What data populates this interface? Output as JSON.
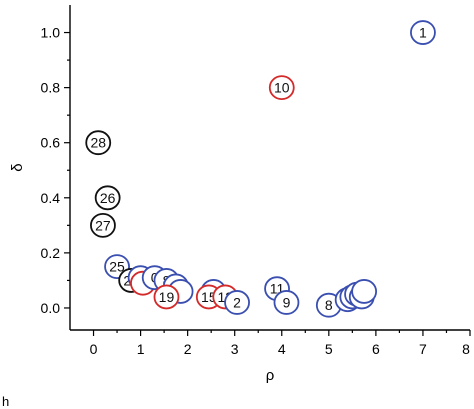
{
  "colors": {
    "blue": "#3a4fb0",
    "red": "#d42a2a",
    "black": "#111111",
    "axis": "#000000"
  },
  "chart_data": {
    "type": "scatter",
    "title": "",
    "xlabel": "ρ",
    "ylabel": "δ",
    "xlim": [
      -0.5,
      8
    ],
    "ylim": [
      -0.08,
      1.1
    ],
    "xticks": [
      0,
      1,
      2,
      3,
      4,
      5,
      6,
      7,
      8
    ],
    "yticks": [
      0.0,
      0.2,
      0.4,
      0.6,
      0.8,
      1.0
    ],
    "xtick_labels": [
      "0",
      "1",
      "2",
      "3",
      "4",
      "5",
      "6",
      "7",
      "8"
    ],
    "ytick_labels": [
      "0.0",
      "0.2",
      "0.4",
      "0.6",
      "0.8",
      "1.0"
    ],
    "grid": false,
    "legend": "none",
    "points": [
      {
        "label": "1",
        "x": 7.0,
        "y": 1.0,
        "color": "blue"
      },
      {
        "label": "10",
        "x": 4.0,
        "y": 0.8,
        "color": "red"
      },
      {
        "label": "28",
        "x": 0.1,
        "y": 0.6,
        "color": "black"
      },
      {
        "label": "26",
        "x": 0.3,
        "y": 0.4,
        "color": "black"
      },
      {
        "label": "27",
        "x": 0.2,
        "y": 0.3,
        "color": "black"
      },
      {
        "label": "25",
        "x": 0.5,
        "y": 0.15,
        "color": "blue"
      },
      {
        "label": "24",
        "x": 0.8,
        "y": 0.1,
        "color": "black"
      },
      {
        "label": "",
        "x": 1.0,
        "y": 0.11,
        "color": "blue"
      },
      {
        "label": "",
        "x": 1.05,
        "y": 0.09,
        "color": "red"
      },
      {
        "label": "0",
        "x": 1.3,
        "y": 0.11,
        "color": "blue"
      },
      {
        "label": "8",
        "x": 1.55,
        "y": 0.1,
        "color": "blue"
      },
      {
        "label": "7",
        "x": 1.75,
        "y": 0.08,
        "color": "blue"
      },
      {
        "label": "",
        "x": 1.85,
        "y": 0.06,
        "color": "blue"
      },
      {
        "label": "19",
        "x": 1.55,
        "y": 0.04,
        "color": "red"
      },
      {
        "label": "",
        "x": 2.55,
        "y": 0.06,
        "color": "blue"
      },
      {
        "label": "15",
        "x": 2.45,
        "y": 0.04,
        "color": "red"
      },
      {
        "label": "13",
        "x": 2.8,
        "y": 0.04,
        "color": "red"
      },
      {
        "label": "2",
        "x": 3.05,
        "y": 0.02,
        "color": "blue"
      },
      {
        "label": "11",
        "x": 3.9,
        "y": 0.07,
        "color": "blue"
      },
      {
        "label": "9",
        "x": 4.1,
        "y": 0.02,
        "color": "blue"
      },
      {
        "label": "8",
        "x": 5.0,
        "y": 0.01,
        "color": "blue"
      },
      {
        "label": "7",
        "x": 5.4,
        "y": 0.03,
        "color": "blue"
      },
      {
        "label": "",
        "x": 5.5,
        "y": 0.04,
        "color": "blue"
      },
      {
        "label": "",
        "x": 5.6,
        "y": 0.05,
        "color": "blue"
      },
      {
        "label": "",
        "x": 5.7,
        "y": 0.04,
        "color": "blue"
      },
      {
        "label": "",
        "x": 5.75,
        "y": 0.06,
        "color": "blue"
      }
    ]
  },
  "corner_fragment": "h"
}
